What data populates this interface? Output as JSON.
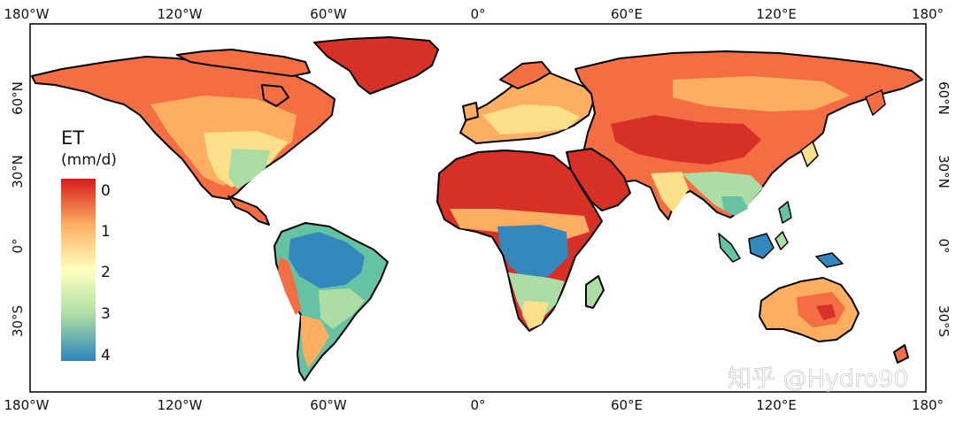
{
  "legend": {
    "title": "ET",
    "unit": "(mm/d)",
    "ticks": [
      "0",
      "1",
      "2",
      "3",
      "4"
    ],
    "colors": [
      "#d7191c",
      "#f46d43",
      "#fdae61",
      "#fee08b",
      "#ffffbf",
      "#e6f598",
      "#abdda4",
      "#66c2a5",
      "#3288bd",
      "#2b83ba"
    ]
  },
  "axes": {
    "lon_labels": [
      "180°W",
      "120°W",
      "60°W",
      "0°",
      "60°E",
      "120°E",
      "180°"
    ],
    "lat_labels": [
      "60°N",
      "30°N",
      "0°",
      "30°S"
    ]
  },
  "watermark": "知乎 @Hydro90",
  "colors": {
    "desert": "#d73027",
    "arid": "#f46d43",
    "semi_arid": "#fdae61",
    "temperate": "#fee08b",
    "humid": "#d9ef8b",
    "wet": "#66c2a5",
    "very_wet": "#3288bd",
    "coast": "#000000"
  }
}
